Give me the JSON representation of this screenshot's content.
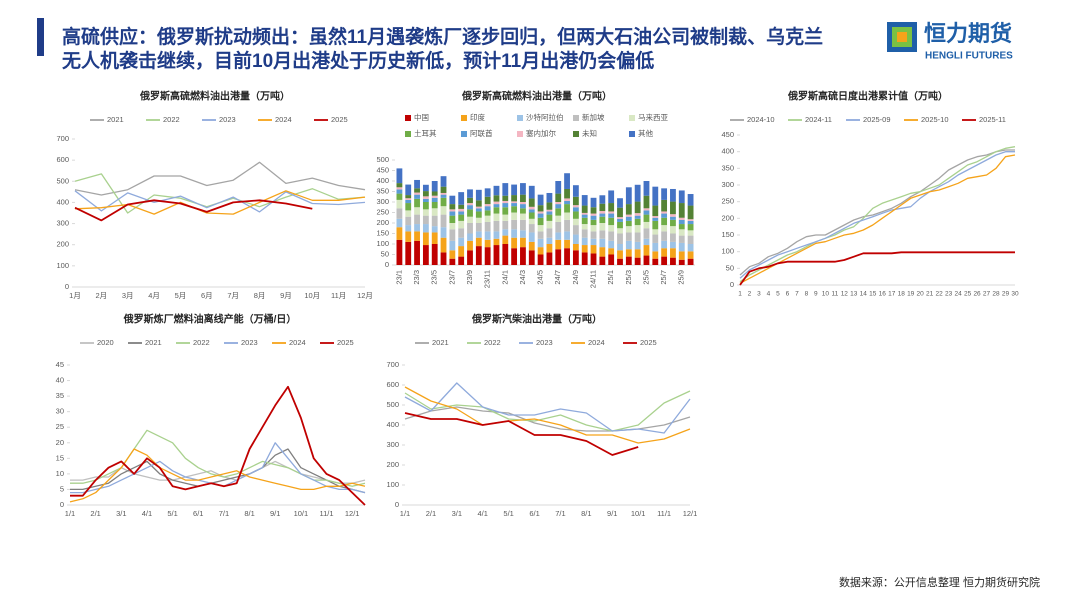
{
  "header": {
    "title_lines": [
      "高硫供应：俄罗斯扰动频出：虽然11月遇袭炼厂逐步回归，但两大石油公司被制裁、乌克兰",
      "无人机袭击继续，目前10月出港处于历史新低，预计11月出港仍会偏低"
    ],
    "logo_name": "恒力期货",
    "logo_sub": "HENGLI FUTURES"
  },
  "footer": "数据来源：公开信息整理  恒力期货研究院",
  "chart_data": [
    {
      "type": "line",
      "title": "俄罗斯高硫燃料油出港量（万吨）",
      "grid": false,
      "categories": [
        "1月",
        "2月",
        "3月",
        "4月",
        "5月",
        "6月",
        "7月",
        "8月",
        "9月",
        "10月",
        "11月",
        "12月"
      ],
      "ylim": [
        0,
        700
      ],
      "yticks": [
        0,
        100,
        200,
        300,
        400,
        500,
        600,
        700
      ],
      "series": [
        {
          "name": "2021",
          "color": "#a5a5a5",
          "values": [
            460,
            435,
            460,
            525,
            525,
            480,
            505,
            590,
            490,
            515,
            480,
            460
          ]
        },
        {
          "name": "2022",
          "color": "#a9d18e",
          "values": [
            500,
            535,
            350,
            435,
            420,
            380,
            420,
            380,
            425,
            465,
            415,
            425
          ]
        },
        {
          "name": "2023",
          "color": "#8faadc",
          "values": [
            455,
            360,
            445,
            400,
            430,
            375,
            425,
            355,
            450,
            395,
            390,
            400
          ]
        },
        {
          "name": "2024",
          "color": "#f5a31a",
          "values": [
            370,
            375,
            390,
            345,
            400,
            350,
            345,
            400,
            455,
            410,
            410,
            425
          ]
        },
        {
          "name": "2025",
          "color": "#c00000",
          "values": [
            375,
            315,
            390,
            410,
            395,
            355,
            400,
            410,
            395,
            370,
            null,
            null
          ]
        }
      ]
    },
    {
      "type": "bar",
      "stacked": true,
      "title": "俄罗斯高硫燃料油出港量（万吨）",
      "grid": false,
      "categories": [
        "23/1",
        null,
        "23/3",
        null,
        "23/5",
        null,
        "23/7",
        null,
        "23/9",
        null,
        "23/11",
        null,
        "24/1",
        null,
        "24/3",
        null,
        "24/5",
        null,
        "24/7",
        null,
        "24/9",
        null,
        "24/11",
        null,
        "25/1",
        null,
        "25/3",
        null,
        "25/5",
        null,
        "25/7",
        null,
        "25/9",
        null
      ],
      "ylim": [
        0,
        500
      ],
      "yticks": [
        0,
        50,
        100,
        150,
        200,
        250,
        300,
        350,
        400,
        450,
        500
      ],
      "series": [
        {
          "name": "中国",
          "color": "#c00000",
          "values": [
            120,
            110,
            115,
            95,
            100,
            60,
            30,
            40,
            70,
            90,
            85,
            95,
            100,
            80,
            85,
            70,
            50,
            60,
            75,
            80,
            70,
            60,
            55,
            40,
            50,
            30,
            40,
            35,
            45,
            30,
            40,
            35,
            25,
            30
          ]
        },
        {
          "name": "印度",
          "color": "#f5a31a",
          "values": [
            60,
            50,
            45,
            60,
            55,
            70,
            40,
            50,
            45,
            40,
            35,
            30,
            40,
            50,
            45,
            40,
            35,
            40,
            45,
            40,
            30,
            35,
            40,
            45,
            30,
            40,
            35,
            40,
            50,
            35,
            40,
            45,
            40,
            35
          ]
        },
        {
          "name": "沙特阿拉伯",
          "color": "#9dc3e6",
          "values": [
            40,
            30,
            35,
            40,
            30,
            50,
            45,
            40,
            35,
            30,
            40,
            35,
            30,
            40,
            35,
            45,
            40,
            30,
            35,
            40,
            45,
            35,
            30,
            40,
            35,
            30,
            40,
            35,
            30,
            40,
            35,
            30,
            40,
            35
          ]
        },
        {
          "name": "新加坡",
          "color": "#bfbfbf",
          "values": [
            50,
            40,
            45,
            40,
            50,
            60,
            55,
            45,
            50,
            40,
            45,
            50,
            40,
            45,
            50,
            40,
            35,
            45,
            50,
            55,
            45,
            40,
            35,
            40,
            45,
            50,
            40,
            45,
            50,
            40,
            45,
            40,
            35,
            40
          ]
        },
        {
          "name": "马来西亚",
          "color": "#d9e8c4",
          "values": [
            40,
            30,
            35,
            30,
            35,
            40,
            30,
            35,
            30,
            25,
            30,
            35,
            30,
            35,
            30,
            25,
            30,
            35,
            30,
            35,
            30,
            25,
            30,
            35,
            30,
            25,
            30,
            35,
            30,
            25,
            30,
            35,
            30,
            25
          ]
        },
        {
          "name": "土耳其",
          "color": "#70ad47",
          "values": [
            30,
            35,
            40,
            35,
            30,
            40,
            35,
            30,
            35,
            30,
            25,
            30,
            35,
            30,
            25,
            30,
            35,
            30,
            35,
            40,
            35,
            30,
            25,
            30,
            35,
            30,
            25,
            30,
            35,
            40,
            35,
            30,
            25,
            30
          ]
        },
        {
          "name": "阿联酋",
          "color": "#5b9bd5",
          "values": [
            20,
            15,
            20,
            15,
            20,
            15,
            20,
            15,
            20,
            15,
            20,
            15,
            20,
            15,
            20,
            15,
            20,
            15,
            20,
            15,
            20,
            15,
            20,
            15,
            20,
            15,
            20,
            15,
            20,
            15,
            20,
            15,
            20,
            15
          ]
        },
        {
          "name": "塞内加尔",
          "color": "#f4b6c2",
          "values": [
            10,
            8,
            10,
            12,
            10,
            8,
            10,
            12,
            10,
            8,
            10,
            12,
            10,
            8,
            10,
            12,
            10,
            8,
            10,
            12,
            10,
            8,
            10,
            12,
            10,
            8,
            10,
            12,
            10,
            8,
            10,
            12,
            10,
            8
          ]
        },
        {
          "name": "未知",
          "color": "#548235",
          "values": [
            20,
            15,
            20,
            25,
            20,
            30,
            25,
            20,
            25,
            30,
            35,
            30,
            25,
            30,
            35,
            40,
            30,
            35,
            40,
            45,
            40,
            35,
            30,
            35,
            40,
            45,
            50,
            55,
            60,
            50,
            55,
            60,
            70,
            65
          ]
        },
        {
          "name": "其他",
          "color": "#4472c4",
          "values": [
            70,
            50,
            40,
            30,
            50,
            50,
            40,
            60,
            40,
            50,
            40,
            45,
            60,
            50,
            55,
            60,
            50,
            45,
            60,
            75,
            55,
            50,
            45,
            40,
            60,
            45,
            80,
            80,
            70,
            90,
            55,
            60,
            60,
            55
          ]
        }
      ]
    },
    {
      "type": "line",
      "title": "俄罗斯高硫日度出港累计值（万吨）",
      "grid": false,
      "categories": [
        1,
        2,
        3,
        4,
        5,
        6,
        7,
        8,
        9,
        10,
        11,
        12,
        13,
        14,
        15,
        16,
        17,
        18,
        19,
        20,
        21,
        22,
        23,
        24,
        25,
        26,
        27,
        28,
        29,
        30
      ],
      "ylim": [
        0,
        450
      ],
      "yticks": [
        0,
        50,
        100,
        150,
        200,
        250,
        300,
        350,
        400,
        450
      ],
      "series": [
        {
          "name": "2024-10",
          "color": "#a5a5a5",
          "values": [
            30,
            55,
            65,
            85,
            95,
            110,
            130,
            145,
            150,
            150,
            165,
            180,
            195,
            205,
            210,
            220,
            230,
            245,
            265,
            280,
            300,
            320,
            345,
            360,
            375,
            385,
            390,
            400,
            405,
            405
          ]
        },
        {
          "name": "2024-11",
          "color": "#a9d18e",
          "values": [
            10,
            30,
            45,
            60,
            75,
            90,
            100,
            115,
            130,
            140,
            150,
            165,
            175,
            200,
            230,
            245,
            255,
            265,
            275,
            280,
            290,
            300,
            320,
            340,
            360,
            370,
            385,
            400,
            410,
            415
          ]
        },
        {
          "name": "2025-09",
          "color": "#8faadc",
          "values": [
            20,
            45,
            60,
            75,
            90,
            100,
            110,
            120,
            130,
            140,
            155,
            170,
            185,
            195,
            205,
            215,
            225,
            230,
            235,
            260,
            280,
            295,
            310,
            330,
            345,
            360,
            375,
            390,
            400,
            400
          ]
        },
        {
          "name": "2025-10",
          "color": "#f5a31a",
          "values": [
            5,
            20,
            35,
            50,
            65,
            80,
            95,
            110,
            125,
            130,
            140,
            150,
            155,
            165,
            180,
            200,
            220,
            240,
            260,
            270,
            280,
            285,
            295,
            305,
            320,
            325,
            330,
            350,
            385,
            390
          ]
        },
        {
          "name": "2025-11",
          "color": "#c00000",
          "values": [
            0,
            40,
            50,
            55,
            65,
            70,
            70,
            70,
            70,
            70,
            70,
            75,
            85,
            95,
            95,
            95,
            95,
            98,
            98,
            98,
            98,
            98,
            98,
            98,
            98,
            98,
            98,
            98,
            98,
            98
          ]
        }
      ]
    },
    {
      "type": "line",
      "title": "俄罗斯炼厂燃料油离线产能（万桶/日）",
      "grid": false,
      "categories": [
        "1/1",
        null,
        "2/1",
        null,
        "3/1",
        null,
        "4/1",
        null,
        "5/1",
        null,
        "6/1",
        null,
        "7/1",
        null,
        "8/1",
        null,
        "9/1",
        null,
        "10/1",
        null,
        "11/1",
        null,
        "12/1",
        null
      ],
      "ylim": [
        0,
        45
      ],
      "yticks": [
        0,
        5,
        10,
        15,
        20,
        25,
        30,
        35,
        40,
        45
      ],
      "series": [
        {
          "name": "2020",
          "color": "#bfbfbf",
          "values": [
            8,
            8,
            9,
            9,
            12,
            10,
            9,
            8,
            8,
            9,
            10,
            11,
            9,
            8,
            10,
            12,
            14,
            12,
            10,
            9,
            8,
            7,
            7,
            8
          ]
        },
        {
          "name": "2021",
          "color": "#7f7f7f",
          "values": [
            5,
            5,
            6,
            7,
            10,
            12,
            14,
            10,
            8,
            7,
            6,
            7,
            8,
            9,
            10,
            12,
            16,
            18,
            12,
            10,
            8,
            6,
            5,
            4
          ]
        },
        {
          "name": "2022",
          "color": "#a9d18e",
          "values": [
            7,
            7,
            8,
            10,
            12,
            18,
            24,
            22,
            20,
            15,
            12,
            10,
            9,
            10,
            12,
            14,
            13,
            12,
            10,
            8,
            8,
            7,
            6,
            7
          ]
        },
        {
          "name": "2023",
          "color": "#8faadc",
          "values": [
            4,
            4,
            5,
            6,
            8,
            10,
            12,
            14,
            11,
            9,
            8,
            7,
            6,
            8,
            10,
            12,
            20,
            15,
            10,
            8,
            6,
            5,
            5,
            4
          ]
        },
        {
          "name": "2024",
          "color": "#f5a31a",
          "values": [
            1,
            2,
            4,
            8,
            12,
            18,
            16,
            12,
            10,
            8,
            8,
            9,
            10,
            11,
            9,
            8,
            7,
            6,
            5,
            5,
            6,
            6,
            7,
            6
          ]
        },
        {
          "name": "2025",
          "color": "#c00000",
          "values": [
            3,
            3,
            8,
            12,
            14,
            10,
            15,
            12,
            6,
            5,
            6,
            7,
            6,
            7,
            18,
            25,
            32,
            38,
            28,
            15,
            10,
            8,
            4,
            0
          ]
        }
      ]
    },
    {
      "type": "line",
      "title": "俄罗斯汽柴油出港量（万吨）",
      "grid": false,
      "categories": [
        "1/1",
        "2/1",
        "3/1",
        "4/1",
        "5/1",
        "6/1",
        "7/1",
        "8/1",
        "9/1",
        "10/1",
        "11/1",
        "12/1"
      ],
      "ylim": [
        0,
        700
      ],
      "yticks": [
        0,
        100,
        200,
        300,
        400,
        500,
        600,
        700
      ],
      "series": [
        {
          "name": "2021",
          "color": "#a5a5a5",
          "values": [
            430,
            470,
            490,
            470,
            460,
            410,
            380,
            370,
            370,
            380,
            400,
            440
          ]
        },
        {
          "name": "2022",
          "color": "#a9d18e",
          "values": [
            560,
            480,
            500,
            490,
            430,
            420,
            450,
            400,
            370,
            400,
            510,
            570
          ]
        },
        {
          "name": "2023",
          "color": "#8faadc",
          "values": [
            540,
            470,
            610,
            490,
            450,
            450,
            480,
            460,
            370,
            380,
            360,
            530
          ]
        },
        {
          "name": "2024",
          "color": "#f5a31a",
          "values": [
            590,
            520,
            480,
            400,
            420,
            430,
            400,
            350,
            350,
            310,
            330,
            380
          ]
        },
        {
          "name": "2025",
          "color": "#c00000",
          "values": [
            460,
            430,
            430,
            400,
            420,
            350,
            350,
            320,
            250,
            290,
            null,
            null
          ]
        }
      ]
    }
  ]
}
